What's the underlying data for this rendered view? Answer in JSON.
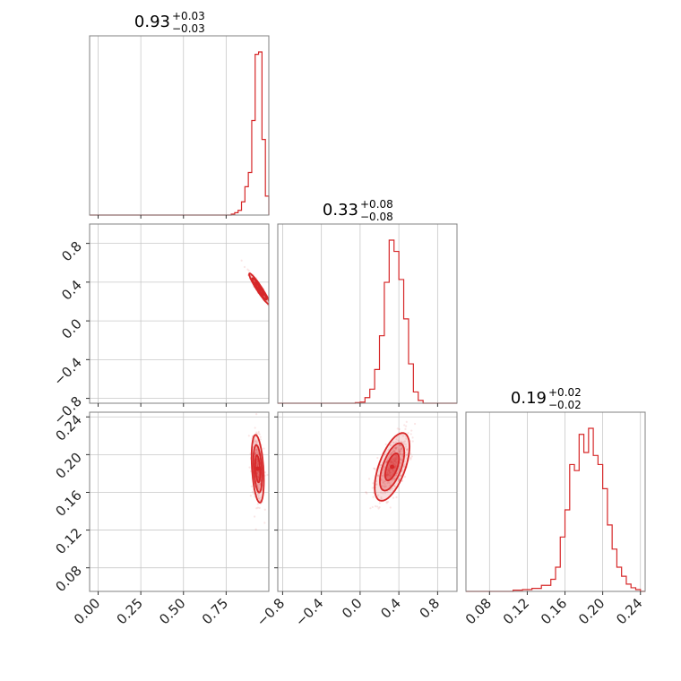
{
  "colors": {
    "series": "#d62728",
    "frame": "#808080",
    "grid": "#c8c8c8"
  },
  "chart_data": {
    "type": "corner",
    "parameters": [
      {
        "title_value": "0.93",
        "title_plus": "+0.03",
        "title_minus": "−0.03"
      },
      {
        "title_value": "0.33",
        "title_plus": "+0.08",
        "title_minus": "−0.08"
      },
      {
        "title_value": "0.19",
        "title_plus": "+0.02",
        "title_minus": "−0.02"
      }
    ],
    "ticks": {
      "p0": [
        "0.00",
        "0.25",
        "0.50",
        "0.75"
      ],
      "p1": [
        "−0.8",
        "−0.4",
        "0.0",
        "0.4",
        "0.8"
      ],
      "p2": [
        "0.08",
        "0.12",
        "0.16",
        "0.20",
        "0.24"
      ]
    },
    "ranges": {
      "p0": [
        -0.05,
        1.0
      ],
      "p1": [
        -0.85,
        1.0
      ],
      "p2": [
        0.055,
        0.245
      ]
    },
    "histograms": {
      "p0": {
        "edges": [
          0.76,
          0.78,
          0.8,
          0.82,
          0.84,
          0.86,
          0.88,
          0.9,
          0.92,
          0.94,
          0.96,
          0.98,
          1.0
        ],
        "counts": [
          0,
          2,
          5,
          10,
          28,
          60,
          90,
          200,
          340,
          345,
          160,
          40
        ]
      },
      "p1": {
        "edges": [
          -0.05,
          0.0,
          0.05,
          0.1,
          0.15,
          0.2,
          0.25,
          0.3,
          0.35,
          0.4,
          0.45,
          0.5,
          0.55,
          0.6,
          0.65
        ],
        "counts": [
          1,
          2,
          10,
          25,
          60,
          120,
          215,
          290,
          270,
          220,
          150,
          70,
          20,
          5
        ]
      },
      "p2": {
        "edges": [
          0.105,
          0.115,
          0.125,
          0.135,
          0.145,
          0.15,
          0.155,
          0.16,
          0.165,
          0.17,
          0.175,
          0.18,
          0.185,
          0.19,
          0.195,
          0.2,
          0.205,
          0.21,
          0.215,
          0.22,
          0.225,
          0.23,
          0.235,
          0.24
        ],
        "counts": [
          2,
          3,
          5,
          10,
          20,
          40,
          90,
          135,
          210,
          200,
          260,
          230,
          270,
          225,
          210,
          170,
          110,
          70,
          40,
          25,
          12,
          6,
          3
        ]
      }
    },
    "contours": {
      "p1_vs_p0": {
        "center": [
          0.945,
          0.33
        ],
        "sd": [
          0.03,
          0.08
        ],
        "corr": -0.95
      },
      "p2_vs_p0": {
        "center": [
          0.935,
          0.185
        ],
        "sd": [
          0.018,
          0.018
        ],
        "corr": -0.35
      },
      "p2_vs_p1": {
        "center": [
          0.33,
          0.187
        ],
        "sd": [
          0.09,
          0.018
        ],
        "corr": 0.6
      }
    },
    "grid": true
  }
}
